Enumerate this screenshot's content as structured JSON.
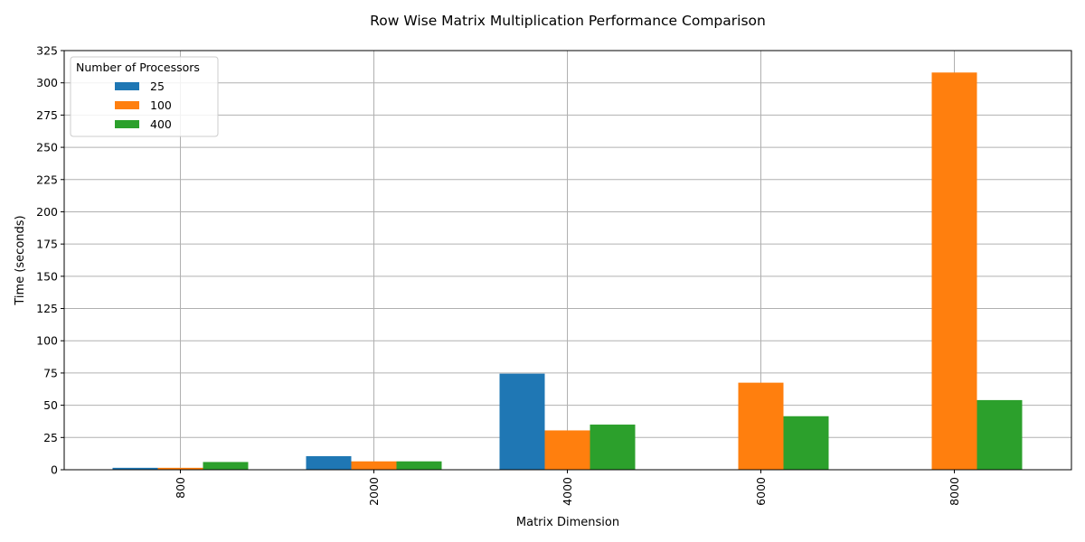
{
  "chart_data": {
    "type": "bar",
    "title": "Row Wise Matrix Multiplication Performance Comparison",
    "xlabel": "Matrix Dimension",
    "ylabel": "Time (seconds)",
    "categories": [
      "800",
      "2000",
      "4000",
      "6000",
      "8000"
    ],
    "ylim": [
      0,
      325
    ],
    "yticks": [
      0,
      25,
      50,
      75,
      100,
      125,
      150,
      175,
      200,
      225,
      250,
      275,
      300,
      325
    ],
    "grid": true,
    "legend": {
      "title": "Number of Processors",
      "position": "top-left"
    },
    "series": [
      {
        "name": "25",
        "color": "#1f77b4",
        "values": [
          1.5,
          10.5,
          74.5,
          null,
          null
        ]
      },
      {
        "name": "100",
        "color": "#ff7f0e",
        "values": [
          1.5,
          6.5,
          30.5,
          67.5,
          308
        ]
      },
      {
        "name": "400",
        "color": "#2ca02c",
        "values": [
          6,
          6.5,
          35,
          41.5,
          54
        ]
      }
    ]
  }
}
